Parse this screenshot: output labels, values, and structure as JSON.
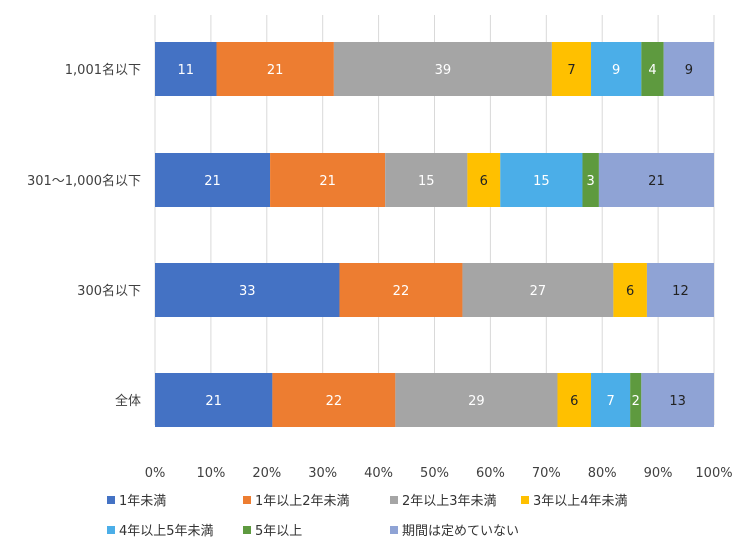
{
  "chart_data": {
    "type": "bar",
    "orientation": "horizontal",
    "stacked": "percent",
    "categories": [
      "1,001名以下",
      "301～1,000名以下",
      "300名以下",
      "全体"
    ],
    "series": [
      {
        "name": "1年未満",
        "color": "#4472C4",
        "values": [
          11,
          21,
          33,
          21
        ]
      },
      {
        "name": "1年以上2年未満",
        "color": "#ED7D31",
        "values": [
          21,
          21,
          22,
          22
        ]
      },
      {
        "name": "2年以上3年未満",
        "color": "#A5A5A5",
        "values": [
          39,
          15,
          27,
          29
        ]
      },
      {
        "name": "3年以上4年未満",
        "color": "#FFC000",
        "values": [
          7,
          6,
          6,
          6
        ]
      },
      {
        "name": "4年以上5年未満",
        "color": "#4BAEE8",
        "values": [
          9,
          15,
          null,
          7
        ]
      },
      {
        "name": "5年以上",
        "color": "#5E9A3F",
        "values": [
          4,
          3,
          null,
          2
        ]
      },
      {
        "name": "期間は定めていない",
        "color": "#8FA3D5",
        "values": [
          9,
          21,
          12,
          13
        ]
      }
    ],
    "xlim": [
      0,
      100
    ],
    "xticks": [
      "0%",
      "10%",
      "20%",
      "30%",
      "40%",
      "50%",
      "60%",
      "70%",
      "80%",
      "90%",
      "100%"
    ],
    "grid": true,
    "legend_position": "bottom"
  }
}
